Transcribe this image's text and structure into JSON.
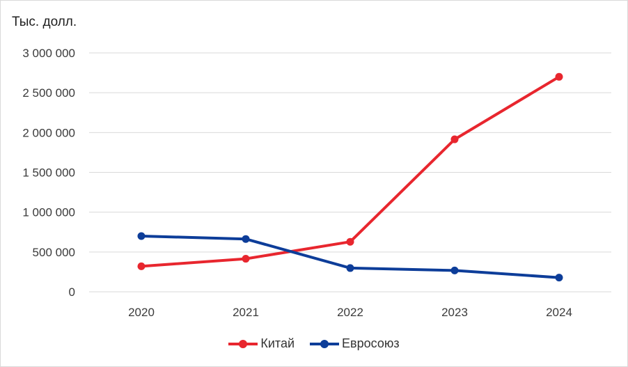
{
  "chart_data": {
    "type": "line",
    "ylabel": "Тыс. долл.",
    "categories": [
      "2020",
      "2021",
      "2022",
      "2023",
      "2024"
    ],
    "ylim": [
      0,
      3000000
    ],
    "yticks": [
      0,
      500000,
      1000000,
      1500000,
      2000000,
      2500000,
      3000000
    ],
    "ytick_labels": [
      "0",
      "500 000",
      "1 000 000",
      "1 500 000",
      "2 000 000",
      "2 500 000",
      "3 000 000"
    ],
    "grid": true,
    "legend_position": "bottom",
    "series": [
      {
        "name": "Китай",
        "color": "#e8262e",
        "values": [
          320000,
          415000,
          628000,
          1915000,
          2700000
        ]
      },
      {
        "name": "Евросоюз",
        "color": "#0d3d99",
        "values": [
          700000,
          663000,
          298000,
          268000,
          178000
        ]
      }
    ]
  }
}
